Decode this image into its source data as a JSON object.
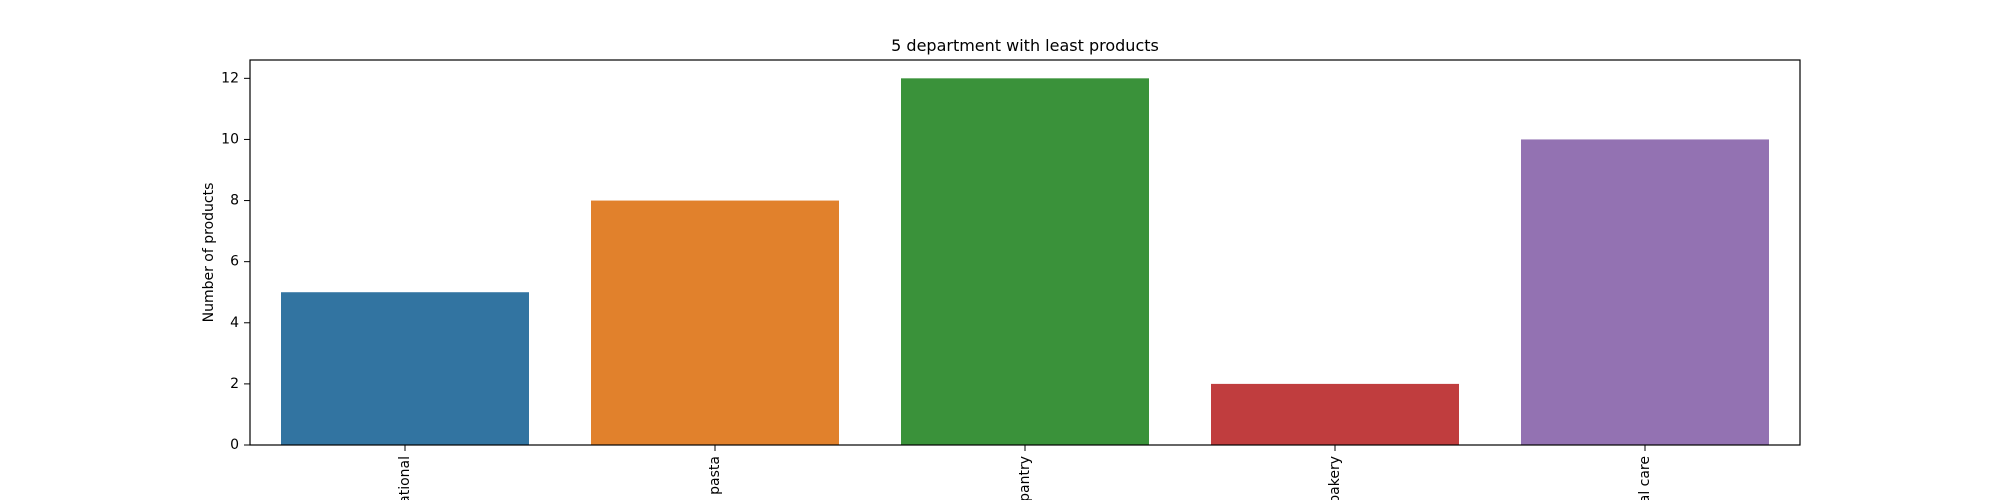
{
  "chart_data": {
    "type": "bar",
    "title": "5 department with least products",
    "xlabel": "",
    "ylabel": "Number of products",
    "categories": [
      "international",
      "dry goods pasta",
      "pantry",
      "bakery",
      "personal care"
    ],
    "visible_labels": [
      "ational",
      "pasta",
      "pantry",
      "bakery",
      "al care"
    ],
    "values": [
      5,
      8,
      12,
      2,
      10
    ],
    "colors": [
      "#3274a1",
      "#e1812c",
      "#3a923a",
      "#c03d3e",
      "#9372b2"
    ],
    "ylim": [
      0,
      12.6
    ],
    "yticks": [
      0,
      2,
      4,
      6,
      8,
      10,
      12
    ],
    "grid": false,
    "legend": "none"
  }
}
